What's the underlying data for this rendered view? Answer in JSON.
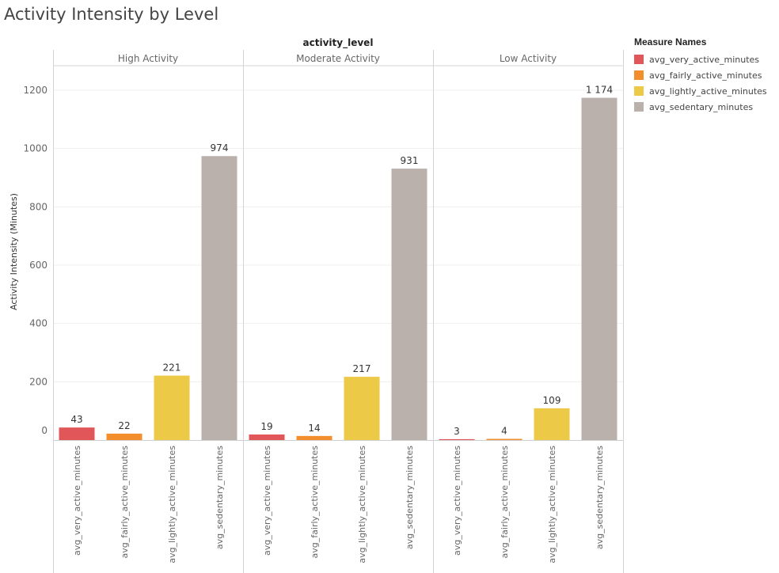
{
  "title": "Activity Intensity by Level",
  "chart_data": {
    "type": "bar",
    "column_header": "activity_level",
    "ylabel": "Activity Intensity (Minutes)",
    "ylim": [
      0,
      1300
    ],
    "yticks": [
      0,
      200,
      400,
      600,
      800,
      1000,
      1200
    ],
    "grid": true,
    "legend_position": "right",
    "legend_title": "Measure Names",
    "categories": [
      "avg_very_active_minutes",
      "avg_fairly_active_minutes",
      "avg_lightly_active_minutes",
      "avg_sedentary_minutes"
    ],
    "colors": [
      "#e15759",
      "#f28e2b",
      "#edc948",
      "#bab0ac"
    ],
    "panels": [
      {
        "name": "High Activity",
        "values": [
          43,
          22,
          221,
          974
        ],
        "labels": [
          "43",
          "22",
          "221",
          "974"
        ]
      },
      {
        "name": "Moderate Activity",
        "values": [
          19,
          14,
          217,
          931
        ],
        "labels": [
          "19",
          "14",
          "217",
          "931"
        ]
      },
      {
        "name": "Low Activity",
        "values": [
          3,
          4,
          109,
          1174
        ],
        "labels": [
          "3",
          "4",
          "109",
          "1 174"
        ]
      }
    ]
  }
}
